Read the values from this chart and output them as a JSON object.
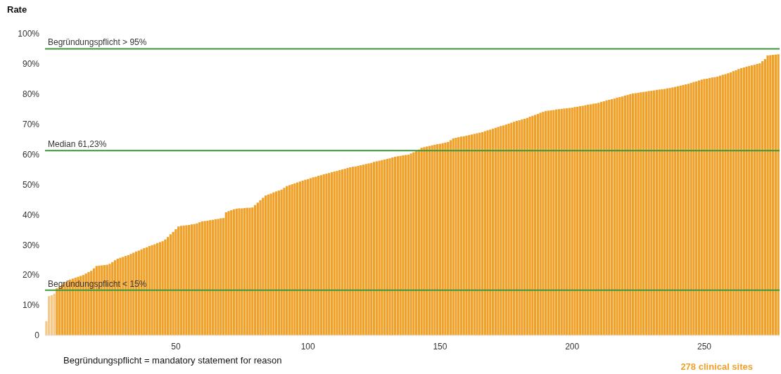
{
  "chart_data": {
    "type": "bar",
    "ylabel": "Rate",
    "annotations": [
      "Begründungspflicht = mandatory statement for reason",
      "278 clinical sites"
    ],
    "x": [
      1,
      2,
      3,
      4,
      5,
      6,
      7,
      8,
      9,
      10,
      11,
      12,
      13,
      14,
      15,
      16,
      17,
      18,
      19,
      20,
      21,
      22,
      23,
      24,
      25,
      26,
      27,
      28,
      29,
      30,
      31,
      32,
      33,
      34,
      35,
      36,
      37,
      38,
      39,
      40,
      41,
      42,
      43,
      44,
      45,
      46,
      47,
      48,
      49,
      50,
      51,
      52,
      53,
      54,
      55,
      56,
      57,
      58,
      59,
      60,
      61,
      62,
      63,
      64,
      65,
      66,
      67,
      68,
      69,
      70,
      71,
      72,
      73,
      74,
      75,
      76,
      77,
      78,
      79,
      80,
      81,
      82,
      83,
      84,
      85,
      86,
      87,
      88,
      89,
      90,
      91,
      92,
      93,
      94,
      95,
      96,
      97,
      98,
      99,
      100,
      101,
      102,
      103,
      104,
      105,
      106,
      107,
      108,
      109,
      110,
      111,
      112,
      113,
      114,
      115,
      116,
      117,
      118,
      119,
      120,
      121,
      122,
      123,
      124,
      125,
      126,
      127,
      128,
      129,
      130,
      131,
      132,
      133,
      134,
      135,
      136,
      137,
      138,
      139,
      140,
      141,
      142,
      143,
      144,
      145,
      146,
      147,
      148,
      149,
      150,
      151,
      152,
      153,
      154,
      155,
      156,
      157,
      158,
      159,
      160,
      161,
      162,
      163,
      164,
      165,
      166,
      167,
      168,
      169,
      170,
      171,
      172,
      173,
      174,
      175,
      176,
      177,
      178,
      179,
      180,
      181,
      182,
      183,
      184,
      185,
      186,
      187,
      188,
      189,
      190,
      191,
      192,
      193,
      194,
      195,
      196,
      197,
      198,
      199,
      200,
      201,
      202,
      203,
      204,
      205,
      206,
      207,
      208,
      209,
      210,
      211,
      212,
      213,
      214,
      215,
      216,
      217,
      218,
      219,
      220,
      221,
      222,
      223,
      224,
      225,
      226,
      227,
      228,
      229,
      230,
      231,
      232,
      233,
      234,
      235,
      236,
      237,
      238,
      239,
      240,
      241,
      242,
      243,
      244,
      245,
      246,
      247,
      248,
      249,
      250,
      251,
      252,
      253,
      254,
      255,
      256,
      257,
      258,
      259,
      260,
      261,
      262,
      263,
      264,
      265,
      266,
      267,
      268,
      269,
      270,
      271,
      272,
      273,
      274,
      275,
      276,
      277,
      278
    ],
    "values": [
      4.7,
      13.0,
      13.3,
      13.8,
      15.6,
      16.3,
      16.8,
      17.4,
      18.0,
      18.5,
      18.8,
      19.1,
      19.4,
      19.7,
      20.0,
      20.5,
      21.0,
      21.4,
      22.2,
      23.0,
      23.1,
      23.2,
      23.3,
      23.4,
      23.7,
      24.3,
      24.9,
      25.4,
      25.7,
      26.0,
      26.3,
      26.6,
      27.0,
      27.4,
      27.8,
      28.1,
      28.5,
      28.9,
      29.2,
      29.6,
      29.9,
      30.2,
      30.6,
      30.9,
      31.2,
      31.8,
      32.6,
      33.5,
      34.3,
      35.2,
      36.1,
      36.3,
      36.4,
      36.5,
      36.6,
      36.8,
      36.9,
      37.1,
      37.5,
      37.8,
      37.9,
      38.0,
      38.2,
      38.3,
      38.5,
      38.6,
      38.8,
      38.9,
      40.8,
      41.2,
      41.5,
      41.8,
      42.0,
      42.1,
      42.1,
      42.2,
      42.3,
      42.3,
      42.4,
      43.2,
      44.0,
      44.8,
      45.6,
      46.4,
      46.7,
      47.0,
      47.4,
      47.7,
      48.0,
      48.3,
      48.9,
      49.5,
      49.8,
      50.1,
      50.4,
      50.7,
      51.0,
      51.3,
      51.6,
      51.8,
      52.1,
      52.4,
      52.6,
      52.9,
      53.1,
      53.4,
      53.6,
      53.8,
      54.1,
      54.3,
      54.5,
      54.8,
      55.0,
      55.2,
      55.5,
      55.7,
      55.9,
      56.0,
      56.2,
      56.4,
      56.6,
      56.8,
      57.0,
      57.2,
      57.5,
      57.7,
      57.9,
      58.1,
      58.3,
      58.5,
      58.7,
      59.0,
      59.2,
      59.4,
      59.5,
      59.7,
      59.8,
      59.9,
      60.3,
      60.7,
      61.1,
      61.6,
      62.2,
      62.4,
      62.6,
      62.8,
      63.0,
      63.2,
      63.4,
      63.5,
      63.7,
      63.9,
      64.1,
      64.7,
      65.3,
      65.5,
      65.7,
      65.9,
      66.0,
      66.2,
      66.4,
      66.6,
      66.8,
      67.0,
      67.2,
      67.4,
      67.7,
      68.0,
      68.2,
      68.5,
      68.8,
      69.1,
      69.4,
      69.6,
      69.9,
      70.2,
      70.5,
      70.8,
      71.1,
      71.3,
      71.6,
      71.8,
      72.1,
      72.5,
      72.8,
      73.1,
      73.4,
      73.8,
      74.1,
      74.4,
      74.5,
      74.6,
      74.7,
      74.9,
      75.0,
      75.1,
      75.2,
      75.3,
      75.4,
      75.5,
      75.7,
      75.8,
      76.0,
      76.1,
      76.3,
      76.5,
      76.6,
      76.8,
      76.9,
      77.1,
      77.4,
      77.6,
      77.9,
      78.1,
      78.3,
      78.5,
      78.8,
      79.0,
      79.2,
      79.5,
      79.7,
      80.0,
      80.2,
      80.3,
      80.4,
      80.6,
      80.7,
      80.8,
      81.0,
      81.1,
      81.2,
      81.4,
      81.5,
      81.6,
      81.7,
      81.9,
      82.0,
      82.2,
      82.4,
      82.6,
      82.8,
      83.0,
      83.2,
      83.4,
      83.7,
      84.0,
      84.2,
      84.5,
      84.8,
      85.0,
      85.1,
      85.3,
      85.5,
      85.6,
      85.8,
      86.1,
      86.4,
      86.6,
      86.9,
      87.2,
      87.6,
      87.9,
      88.3,
      88.6,
      88.8,
      89.1,
      89.3,
      89.5,
      89.7,
      90.0,
      90.2,
      90.9,
      91.6,
      92.8,
      92.9,
      93.0,
      93.1,
      93.2
    ],
    "colors": [
      "#f5c98a",
      "#f5c98a",
      "#f5c98a",
      "#f5c98a",
      "#f0a12a",
      "#f0a12a",
      "#f0a12a",
      "#f0a12a",
      "#f0a12a",
      "#f0a12a",
      "#f0a12a",
      "#f0a12a",
      "#f0a12a",
      "#f0a12a",
      "#f0a12a",
      "#f0a12a",
      "#f0a12a",
      "#f0a12a",
      "#f0a12a",
      "#f0a12a",
      "#f0a12a",
      "#f0a12a",
      "#f0a12a",
      "#f0a12a",
      "#f0a12a",
      "#f0a12a",
      "#f0a12a",
      "#f0a12a",
      "#f0a12a",
      "#f0a12a",
      "#f0a12a",
      "#f0a12a",
      "#f0a12a",
      "#f0a12a",
      "#f0a12a",
      "#f0a12a",
      "#f0a12a",
      "#f0a12a",
      "#f0a12a",
      "#f0a12a",
      "#f0a12a",
      "#f0a12a",
      "#f0a12a",
      "#f0a12a",
      "#f0a12a",
      "#f0a12a",
      "#f0a12a",
      "#f0a12a",
      "#f0a12a",
      "#f0a12a",
      "#f0a12a",
      "#f0a12a",
      "#f0a12a",
      "#f0a12a",
      "#f0a12a",
      "#f0a12a",
      "#f0a12a",
      "#f0a12a",
      "#f0a12a",
      "#f0a12a",
      "#f0a12a",
      "#f0a12a",
      "#f0a12a",
      "#f0a12a",
      "#f0a12a",
      "#f0a12a",
      "#f0a12a",
      "#f0a12a",
      "#f0a12a",
      "#f0a12a",
      "#f0a12a",
      "#f0a12a",
      "#f0a12a",
      "#f0a12a",
      "#f0a12a",
      "#f0a12a",
      "#f0a12a",
      "#f0a12a",
      "#f0a12a",
      "#f0a12a",
      "#f0a12a",
      "#f0a12a",
      "#f0a12a",
      "#f0a12a",
      "#f0a12a",
      "#f0a12a",
      "#f0a12a",
      "#f0a12a",
      "#f0a12a",
      "#f0a12a",
      "#f0a12a",
      "#f0a12a",
      "#f0a12a",
      "#f0a12a",
      "#f0a12a",
      "#f0a12a",
      "#f0a12a",
      "#f0a12a",
      "#f0a12a",
      "#f0a12a",
      "#f0a12a",
      "#f0a12a",
      "#f0a12a",
      "#f0a12a",
      "#f0a12a",
      "#f0a12a",
      "#f0a12a",
      "#f0a12a",
      "#f0a12a",
      "#f0a12a",
      "#f0a12a",
      "#f0a12a",
      "#f0a12a",
      "#f0a12a",
      "#f0a12a",
      "#f0a12a",
      "#f0a12a",
      "#f0a12a",
      "#f0a12a",
      "#f0a12a",
      "#f0a12a",
      "#f0a12a",
      "#f0a12a",
      "#f0a12a",
      "#f0a12a",
      "#f0a12a",
      "#f0a12a",
      "#f0a12a",
      "#f0a12a",
      "#f0a12a",
      "#f0a12a",
      "#f0a12a",
      "#f0a12a",
      "#f0a12a",
      "#f0a12a",
      "#f0a12a",
      "#f0a12a",
      "#f0a12a",
      "#f0a12a",
      "#f0a12a",
      "#f0a12a",
      "#f0a12a",
      "#f0a12a",
      "#f0a12a",
      "#f0a12a",
      "#f0a12a",
      "#f0a12a",
      "#f0a12a",
      "#f0a12a",
      "#f0a12a",
      "#f0a12a",
      "#f0a12a",
      "#f0a12a",
      "#f0a12a",
      "#f0a12a",
      "#f0a12a",
      "#f0a12a",
      "#f0a12a",
      "#f0a12a",
      "#f0a12a",
      "#f0a12a",
      "#f0a12a",
      "#f0a12a",
      "#f0a12a",
      "#f0a12a",
      "#f0a12a",
      "#f0a12a",
      "#f0a12a",
      "#f0a12a",
      "#f0a12a",
      "#f0a12a",
      "#f0a12a",
      "#f0a12a",
      "#f0a12a",
      "#f0a12a",
      "#f0a12a",
      "#f0a12a",
      "#f0a12a",
      "#f0a12a",
      "#f0a12a",
      "#f0a12a",
      "#f0a12a",
      "#f0a12a",
      "#f0a12a",
      "#f0a12a",
      "#f0a12a",
      "#f0a12a",
      "#f0a12a",
      "#f0a12a",
      "#f0a12a",
      "#f0a12a",
      "#f0a12a",
      "#f0a12a",
      "#f0a12a",
      "#f0a12a",
      "#f0a12a",
      "#f0a12a",
      "#f0a12a",
      "#f0a12a",
      "#f0a12a",
      "#f0a12a",
      "#f0a12a",
      "#f0a12a",
      "#f0a12a",
      "#f0a12a",
      "#f0a12a",
      "#f0a12a",
      "#f0a12a",
      "#f0a12a",
      "#f0a12a",
      "#f0a12a",
      "#f0a12a",
      "#f0a12a",
      "#f0a12a",
      "#f0a12a",
      "#f0a12a",
      "#f0a12a",
      "#f0a12a",
      "#f0a12a",
      "#f0a12a",
      "#f0a12a",
      "#f0a12a",
      "#f0a12a",
      "#f0a12a",
      "#f0a12a",
      "#f0a12a",
      "#f0a12a",
      "#f0a12a",
      "#f0a12a",
      "#f0a12a",
      "#f0a12a",
      "#f0a12a",
      "#f0a12a",
      "#f0a12a",
      "#f0a12a",
      "#f0a12a",
      "#f0a12a",
      "#f0a12a",
      "#f0a12a",
      "#f0a12a",
      "#f0a12a",
      "#f0a12a",
      "#f0a12a",
      "#f0a12a",
      "#f0a12a",
      "#f0a12a",
      "#f0a12a",
      "#f0a12a",
      "#f0a12a",
      "#f0a12a",
      "#f0a12a",
      "#f0a12a",
      "#f0a12a",
      "#f0a12a",
      "#f0a12a",
      "#f0a12a",
      "#f0a12a",
      "#f0a12a",
      "#f0a12a",
      "#f0a12a",
      "#f0a12a",
      "#f0a12a",
      "#f0a12a",
      "#f0a12a",
      "#f0a12a",
      "#f0a12a",
      "#f0a12a",
      "#f0a12a",
      "#f0a12a",
      "#f0a12a",
      "#f0a12a",
      "#f0a12a",
      "#f0a12a",
      "#f0a12a",
      "#f0a12a",
      "#f0a12a",
      "#f0a12a",
      "#f0a12a"
    ],
    "xlim": [
      0.5,
      278.5
    ],
    "xticks": [
      50,
      100,
      150,
      200,
      250
    ],
    "ylim": [
      0,
      100
    ],
    "yticks": [
      0,
      {
        "value": 10,
        "label": "10%"
      },
      {
        "value": 20,
        "label": "20%"
      },
      {
        "value": 30,
        "label": "30%"
      },
      {
        "value": 40,
        "label": "40%"
      },
      {
        "value": 50,
        "label": "50%"
      },
      {
        "value": 60,
        "label": "60%"
      },
      {
        "value": 70,
        "label": "70%"
      },
      {
        "value": 80,
        "label": "80%"
      },
      {
        "value": 90,
        "label": "90%"
      },
      {
        "value": 100,
        "label": "100%"
      }
    ],
    "ref_lines": [
      {
        "axis": "y",
        "value": 95,
        "label": "Begründungspflicht > 95%",
        "color": "#3a9a3a"
      },
      {
        "axis": "y",
        "value": 61.23,
        "label": "Median 61,23%",
        "color": "#3a9a3a"
      },
      {
        "axis": "y",
        "value": 15,
        "label": "Begründungspflicht < 15%",
        "color": "#3a9a3a"
      }
    ]
  }
}
